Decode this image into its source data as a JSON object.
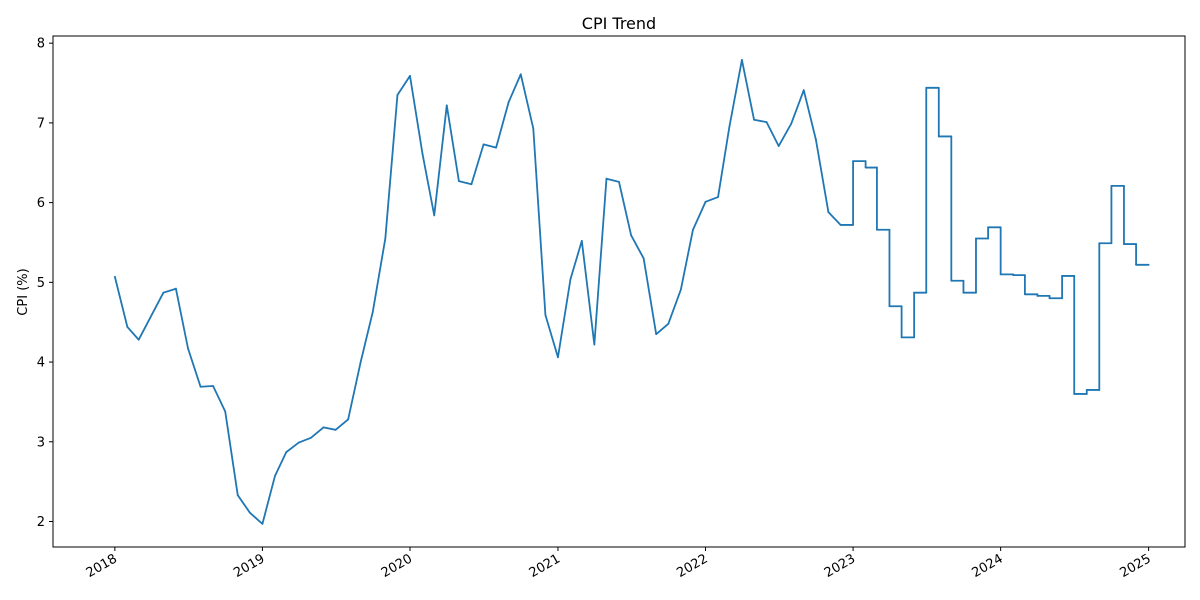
{
  "chart_data": {
    "type": "line",
    "title": "CPI Trend",
    "xlabel": "",
    "ylabel": "CPI (%)",
    "x_range": [
      "2017-08-01",
      "2025-04-01"
    ],
    "ylim": [
      1.68,
      8.09
    ],
    "x_ticks": [
      "2018",
      "2019",
      "2020",
      "2021",
      "2022",
      "2023",
      "2024",
      "2025"
    ],
    "y_ticks": [
      "2",
      "3",
      "4",
      "5",
      "6",
      "7",
      "8"
    ],
    "grid": false,
    "line_color": "#1f77b4",
    "series": [
      {
        "points": [
          [
            "2018-01-01",
            5.07
          ],
          [
            "2018-02-01",
            4.44
          ],
          [
            "2018-03-01",
            4.28
          ],
          [
            "2018-05-01",
            4.87
          ],
          [
            "2018-06-01",
            4.92
          ],
          [
            "2018-07-01",
            4.17
          ],
          [
            "2018-08-01",
            3.69
          ],
          [
            "2018-09-01",
            3.7
          ],
          [
            "2018-10-01",
            3.38
          ],
          [
            "2018-11-01",
            2.33
          ],
          [
            "2018-12-01",
            2.11
          ],
          [
            "2019-01-01",
            1.97
          ],
          [
            "2019-02-01",
            2.57
          ],
          [
            "2019-03-01",
            2.87
          ],
          [
            "2019-04-01",
            2.99
          ],
          [
            "2019-05-01",
            3.05
          ],
          [
            "2019-06-01",
            3.18
          ],
          [
            "2019-07-01",
            3.15
          ],
          [
            "2019-08-01",
            3.28
          ],
          [
            "2019-09-01",
            4.0
          ],
          [
            "2019-10-01",
            4.63
          ],
          [
            "2019-11-01",
            5.55
          ],
          [
            "2019-12-01",
            7.35
          ],
          [
            "2020-01-01",
            7.59
          ],
          [
            "2020-02-01",
            6.61
          ],
          [
            "2020-03-01",
            5.84
          ],
          [
            "2020-04-01",
            7.22
          ],
          [
            "2020-05-01",
            6.27
          ],
          [
            "2020-06-01",
            6.23
          ],
          [
            "2020-07-01",
            6.73
          ],
          [
            "2020-08-01",
            6.69
          ],
          [
            "2020-09-01",
            7.26
          ],
          [
            "2020-10-01",
            7.61
          ],
          [
            "2020-11-01",
            6.93
          ],
          [
            "2020-12-01",
            4.59
          ],
          [
            "2021-01-01",
            4.06
          ],
          [
            "2021-02-01",
            5.04
          ],
          [
            "2021-03-01",
            5.52
          ],
          [
            "2021-04-01",
            4.22
          ],
          [
            "2021-05-01",
            6.3
          ],
          [
            "2021-06-01",
            6.26
          ],
          [
            "2021-07-01",
            5.59
          ],
          [
            "2021-08-01",
            5.3
          ],
          [
            "2021-09-01",
            4.35
          ],
          [
            "2021-10-01",
            4.48
          ],
          [
            "2021-11-01",
            4.91
          ],
          [
            "2021-12-01",
            5.66
          ],
          [
            "2022-01-01",
            6.01
          ],
          [
            "2022-02-01",
            6.07
          ],
          [
            "2022-03-01",
            6.95
          ],
          [
            "2022-04-01",
            7.79
          ],
          [
            "2022-05-01",
            7.04
          ],
          [
            "2022-06-01",
            7.01
          ],
          [
            "2022-07-01",
            6.71
          ],
          [
            "2022-08-01",
            6.99
          ],
          [
            "2022-09-01",
            7.41
          ],
          [
            "2022-10-01",
            6.79
          ],
          [
            "2022-11-01",
            5.88
          ],
          [
            "2022-12-01",
            5.72
          ],
          [
            "2023-01-01",
            5.72
          ],
          [
            "2023-01-01",
            6.52
          ],
          [
            "2023-02-01",
            6.52
          ],
          [
            "2023-02-01",
            6.44
          ],
          [
            "2023-03-01",
            6.44
          ],
          [
            "2023-03-01",
            5.66
          ],
          [
            "2023-04-01",
            5.66
          ],
          [
            "2023-04-01",
            4.7
          ],
          [
            "2023-05-01",
            4.7
          ],
          [
            "2023-05-01",
            4.31
          ],
          [
            "2023-06-01",
            4.31
          ],
          [
            "2023-06-01",
            4.87
          ],
          [
            "2023-07-01",
            4.87
          ],
          [
            "2023-07-01",
            7.44
          ],
          [
            "2023-08-01",
            7.44
          ],
          [
            "2023-08-01",
            6.83
          ],
          [
            "2023-09-01",
            6.83
          ],
          [
            "2023-09-01",
            5.02
          ],
          [
            "2023-10-01",
            5.02
          ],
          [
            "2023-10-01",
            4.87
          ],
          [
            "2023-11-01",
            4.87
          ],
          [
            "2023-11-01",
            5.55
          ],
          [
            "2023-12-01",
            5.55
          ],
          [
            "2023-12-01",
            5.69
          ],
          [
            "2024-01-01",
            5.69
          ],
          [
            "2024-01-01",
            5.1
          ],
          [
            "2024-02-01",
            5.1
          ],
          [
            "2024-02-01",
            5.09
          ],
          [
            "2024-03-01",
            5.09
          ],
          [
            "2024-03-01",
            4.85
          ],
          [
            "2024-04-01",
            4.85
          ],
          [
            "2024-04-01",
            4.83
          ],
          [
            "2024-05-01",
            4.83
          ],
          [
            "2024-05-01",
            4.8
          ],
          [
            "2024-06-01",
            4.8
          ],
          [
            "2024-06-01",
            5.08
          ],
          [
            "2024-07-01",
            5.08
          ],
          [
            "2024-07-01",
            3.6
          ],
          [
            "2024-08-01",
            3.6
          ],
          [
            "2024-08-01",
            3.65
          ],
          [
            "2024-09-01",
            3.65
          ],
          [
            "2024-09-01",
            5.49
          ],
          [
            "2024-10-01",
            5.49
          ],
          [
            "2024-10-01",
            6.21
          ],
          [
            "2024-11-01",
            6.21
          ],
          [
            "2024-11-01",
            5.48
          ],
          [
            "2024-12-01",
            5.48
          ],
          [
            "2024-12-01",
            5.22
          ],
          [
            "2025-01-01",
            5.22
          ]
        ]
      }
    ]
  }
}
